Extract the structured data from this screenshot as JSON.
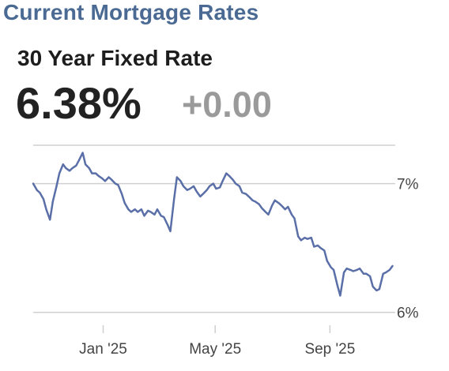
{
  "header": {
    "title": "Current Mortgage Rates",
    "product": "30 Year Fixed Rate",
    "rate": "6.38%",
    "change": "+0.00"
  },
  "colors": {
    "title": "#4a6a93",
    "line": "#5a6fa8",
    "grid": "#d0d0d0",
    "change": "#9a9a9a"
  },
  "chart_data": {
    "type": "line",
    "title": "",
    "xlabel": "",
    "ylabel": "",
    "ylim": [
      5.9,
      7.2
    ],
    "y_ticks": [
      {
        "value": 7.0,
        "label": "7%"
      },
      {
        "value": 6.0,
        "label": "6%"
      }
    ],
    "x_ticks": [
      {
        "date": "2025-01-01",
        "label": "Jan '25"
      },
      {
        "date": "2025-05-01",
        "label": "May '25"
      },
      {
        "date": "2025-09-01",
        "label": "Sep '25"
      }
    ],
    "x_range": [
      "2024-10-18",
      "2025-11-10"
    ],
    "grid": true,
    "series": [
      {
        "x": [
          "2024-10-18",
          "2024-10-22",
          "2024-10-25",
          "2024-10-29",
          "2024-11-01",
          "2024-11-05",
          "2024-11-08",
          "2024-11-12",
          "2024-11-15",
          "2024-11-19",
          "2024-11-22",
          "2024-11-26",
          "2024-11-29",
          "2024-12-03",
          "2024-12-06",
          "2024-12-10",
          "2024-12-13",
          "2024-12-17",
          "2024-12-20",
          "2024-12-24",
          "2024-12-27",
          "2024-12-31",
          "2025-01-03",
          "2025-01-07",
          "2025-01-10",
          "2025-01-14",
          "2025-01-17",
          "2025-01-21",
          "2025-01-24",
          "2025-01-28",
          "2025-01-31",
          "2025-02-04",
          "2025-02-07",
          "2025-02-11",
          "2025-02-14",
          "2025-02-18",
          "2025-02-21",
          "2025-02-25",
          "2025-02-28",
          "2025-03-04",
          "2025-03-07",
          "2025-03-11",
          "2025-03-14",
          "2025-03-18",
          "2025-03-21",
          "2025-03-25",
          "2025-03-28",
          "2025-04-01",
          "2025-04-04",
          "2025-04-08",
          "2025-04-11",
          "2025-04-15",
          "2025-04-18",
          "2025-04-22",
          "2025-04-25",
          "2025-04-29",
          "2025-05-02",
          "2025-05-06",
          "2025-05-09",
          "2025-05-13",
          "2025-05-16",
          "2025-05-20",
          "2025-05-23",
          "2025-05-27",
          "2025-05-30",
          "2025-06-03",
          "2025-06-06",
          "2025-06-10",
          "2025-06-13",
          "2025-06-17",
          "2025-06-20",
          "2025-06-24",
          "2025-06-27",
          "2025-07-01",
          "2025-07-04",
          "2025-07-08",
          "2025-07-11",
          "2025-07-15",
          "2025-07-18",
          "2025-07-22",
          "2025-07-25",
          "2025-07-29",
          "2025-08-01",
          "2025-08-05",
          "2025-08-08",
          "2025-08-12",
          "2025-08-15",
          "2025-08-19",
          "2025-08-22",
          "2025-08-26",
          "2025-08-29",
          "2025-09-02",
          "2025-09-05",
          "2025-09-09",
          "2025-09-12",
          "2025-09-16",
          "2025-09-19",
          "2025-09-23",
          "2025-09-26",
          "2025-09-30",
          "2025-10-03",
          "2025-10-07",
          "2025-10-10",
          "2025-10-14",
          "2025-10-17",
          "2025-10-21",
          "2025-10-24",
          "2025-10-28",
          "2025-10-31",
          "2025-11-04",
          "2025-11-07"
        ],
        "y": [
          7.0,
          6.95,
          6.93,
          6.88,
          6.8,
          6.72,
          6.86,
          6.98,
          7.08,
          7.15,
          7.12,
          7.1,
          7.12,
          7.14,
          7.18,
          7.24,
          7.15,
          7.12,
          7.08,
          7.08,
          7.06,
          7.04,
          7.02,
          7.05,
          7.03,
          7.0,
          6.99,
          6.92,
          6.85,
          6.8,
          6.78,
          6.8,
          6.78,
          6.8,
          6.75,
          6.79,
          6.78,
          6.76,
          6.8,
          6.75,
          6.74,
          6.68,
          6.63,
          6.88,
          7.05,
          7.02,
          6.98,
          6.95,
          6.96,
          6.98,
          6.94,
          6.9,
          6.92,
          6.95,
          6.98,
          7.0,
          6.96,
          6.97,
          7.02,
          7.08,
          7.06,
          7.03,
          7.0,
          6.98,
          6.93,
          6.92,
          6.9,
          6.87,
          6.86,
          6.84,
          6.81,
          6.78,
          6.76,
          6.83,
          6.87,
          6.85,
          6.83,
          6.8,
          6.82,
          6.76,
          6.73,
          6.59,
          6.56,
          6.58,
          6.57,
          6.58,
          6.51,
          6.52,
          6.5,
          6.48,
          6.4,
          6.35,
          6.33,
          6.21,
          6.13,
          6.31,
          6.34,
          6.33,
          6.32,
          6.33,
          6.34,
          6.3,
          6.3,
          6.28,
          6.2,
          6.17,
          6.18,
          6.3,
          6.31,
          6.33,
          6.36
        ]
      }
    ]
  }
}
